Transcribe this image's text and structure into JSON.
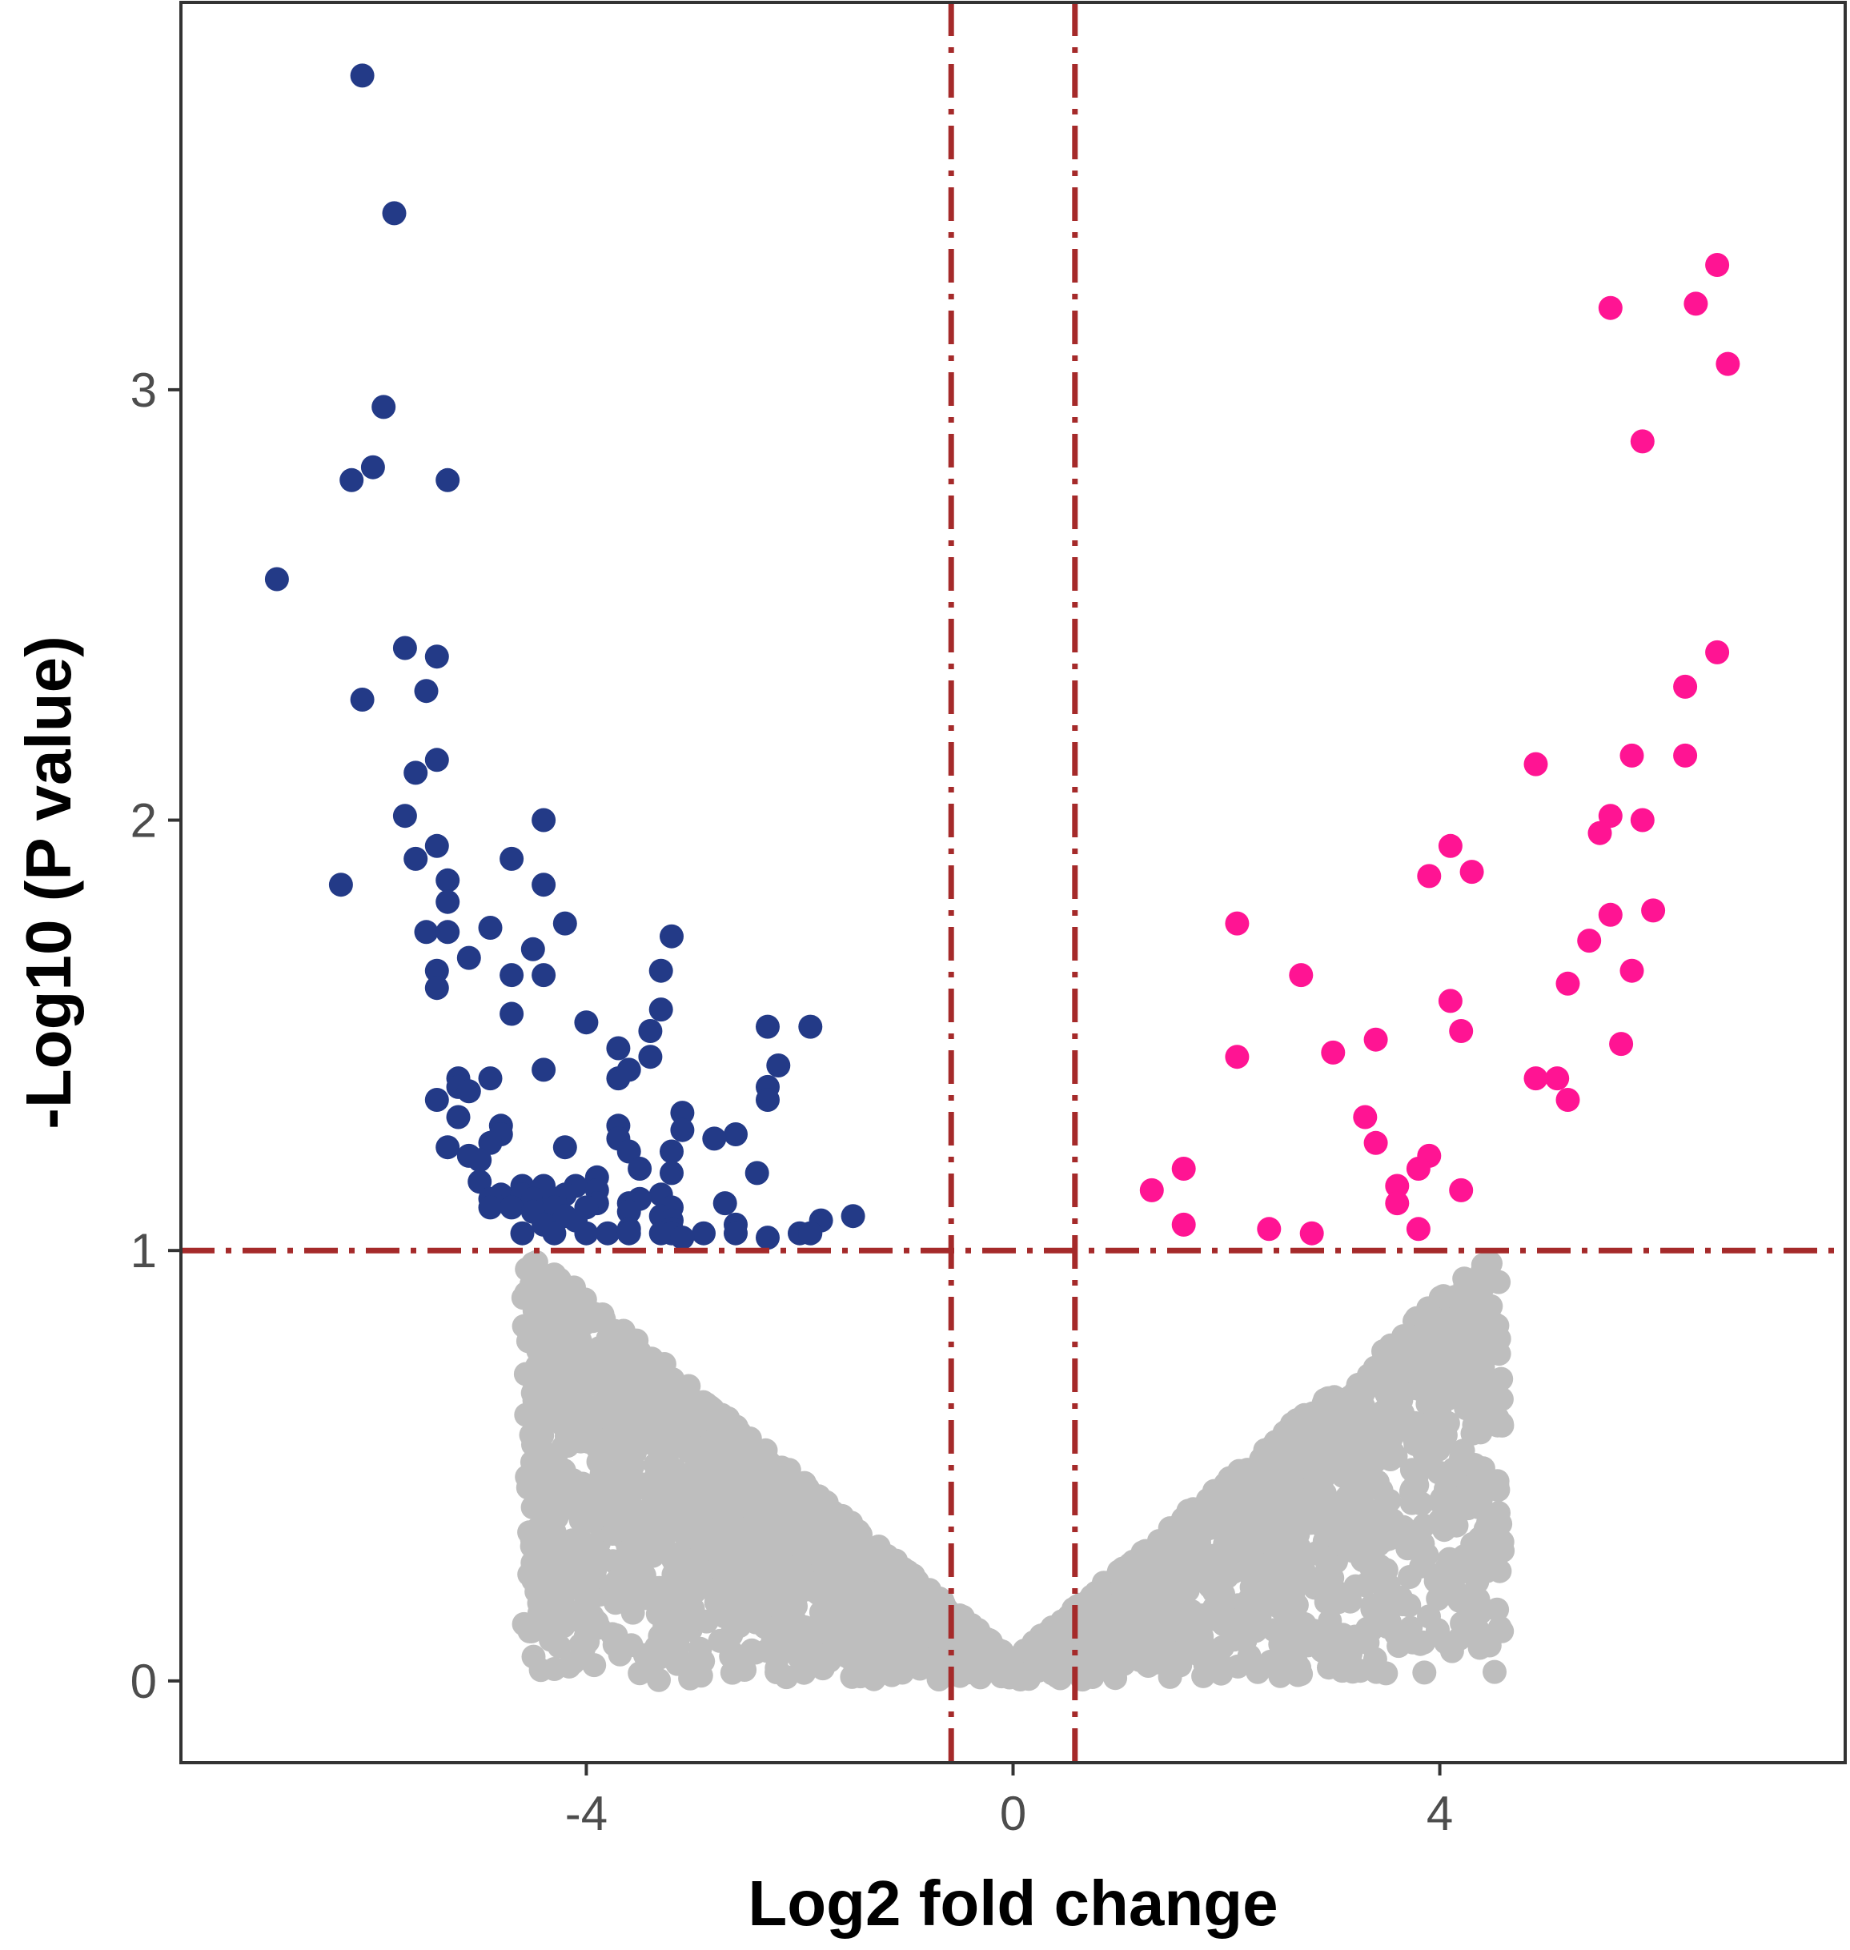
{
  "chart_data": {
    "type": "scatter",
    "title": "",
    "xlabel": "Log2 fold change",
    "ylabel": "-Log10 (P value)",
    "xlim": [
      -7.8,
      7.8
    ],
    "ylim": [
      -0.19,
      3.9
    ],
    "x_ticks": [
      -4,
      0,
      4
    ],
    "x_tick_labels": [
      "-4",
      "0",
      "4"
    ],
    "y_ticks": [
      0,
      1,
      2,
      3
    ],
    "y_tick_labels": [
      "0",
      "1",
      "2",
      "3"
    ],
    "grid": false,
    "legend": "none",
    "thresholds": {
      "log2fc": [
        -0.58,
        0.58
      ],
      "neg_log10_p": 1,
      "color": "#a52a2a"
    },
    "colors": {
      "down": "#233a87",
      "up": "#ff1493",
      "not_significant": "#bebebe"
    },
    "series": [
      {
        "group": "down",
        "points": [
          [
            -6.1,
            3.73
          ],
          [
            -5.8,
            3.41
          ],
          [
            -5.9,
            2.96
          ],
          [
            -6.0,
            2.82
          ],
          [
            -6.2,
            2.79
          ],
          [
            -5.3,
            2.79
          ],
          [
            -6.9,
            2.56
          ],
          [
            -5.7,
            2.4
          ],
          [
            -5.4,
            2.38
          ],
          [
            -5.5,
            2.3
          ],
          [
            -6.1,
            2.28
          ],
          [
            -5.4,
            2.14
          ],
          [
            -5.6,
            2.11
          ],
          [
            -5.7,
            2.01
          ],
          [
            -4.4,
            2.0
          ],
          [
            -5.4,
            1.94
          ],
          [
            -5.6,
            1.91
          ],
          [
            -4.7,
            1.91
          ],
          [
            -5.3,
            1.86
          ],
          [
            -6.3,
            1.85
          ],
          [
            -4.4,
            1.85
          ],
          [
            -5.3,
            1.81
          ],
          [
            -4.2,
            1.76
          ],
          [
            -5.5,
            1.74
          ],
          [
            -5.3,
            1.74
          ],
          [
            -4.9,
            1.75
          ],
          [
            -3.2,
            1.73
          ],
          [
            -4.5,
            1.7
          ],
          [
            -5.1,
            1.68
          ],
          [
            -5.4,
            1.65
          ],
          [
            -4.7,
            1.64
          ],
          [
            -4.4,
            1.64
          ],
          [
            -3.3,
            1.65
          ],
          [
            -5.4,
            1.61
          ],
          [
            -3.3,
            1.56
          ],
          [
            -4.7,
            1.55
          ],
          [
            -4.0,
            1.53
          ],
          [
            -3.4,
            1.51
          ],
          [
            -2.3,
            1.52
          ],
          [
            -1.9,
            1.52
          ],
          [
            -3.7,
            1.47
          ],
          [
            -3.4,
            1.45
          ],
          [
            -2.2,
            1.43
          ],
          [
            -4.4,
            1.42
          ],
          [
            -5.2,
            1.4
          ],
          [
            -4.9,
            1.4
          ],
          [
            -3.7,
            1.4
          ],
          [
            -3.6,
            1.42
          ],
          [
            -5.2,
            1.38
          ],
          [
            -5.1,
            1.37
          ],
          [
            -2.3,
            1.38
          ],
          [
            -5.4,
            1.35
          ],
          [
            -2.3,
            1.35
          ],
          [
            -3.1,
            1.32
          ],
          [
            -4.8,
            1.29
          ],
          [
            -5.2,
            1.31
          ],
          [
            -3.7,
            1.29
          ],
          [
            -3.1,
            1.28
          ],
          [
            -4.8,
            1.27
          ],
          [
            -2.6,
            1.27
          ],
          [
            -2.8,
            1.26
          ],
          [
            -3.7,
            1.26
          ],
          [
            -4.9,
            1.25
          ],
          [
            -4.2,
            1.24
          ],
          [
            -5.3,
            1.24
          ],
          [
            -3.6,
            1.23
          ],
          [
            -5.1,
            1.22
          ],
          [
            -3.2,
            1.23
          ],
          [
            -5.0,
            1.21
          ],
          [
            -3.5,
            1.19
          ],
          [
            -2.4,
            1.18
          ],
          [
            -3.2,
            1.18
          ],
          [
            -3.9,
            1.17
          ],
          [
            -5.0,
            1.16
          ],
          [
            -4.6,
            1.15
          ],
          [
            -4.4,
            1.15
          ],
          [
            -4.1,
            1.15
          ],
          [
            -3.9,
            1.14
          ],
          [
            -4.8,
            1.13
          ],
          [
            -4.6,
            1.13
          ],
          [
            -4.2,
            1.13
          ],
          [
            -3.3,
            1.13
          ],
          [
            -4.9,
            1.12
          ],
          [
            -4.5,
            1.12
          ],
          [
            -4.3,
            1.12
          ],
          [
            -3.5,
            1.12
          ],
          [
            -3.9,
            1.11
          ],
          [
            -3.6,
            1.11
          ],
          [
            -2.7,
            1.11
          ],
          [
            -4.9,
            1.1
          ],
          [
            -4.7,
            1.1
          ],
          [
            -4.3,
            1.1
          ],
          [
            -4.0,
            1.1
          ],
          [
            -3.2,
            1.1
          ],
          [
            -3.6,
            1.09
          ],
          [
            -4.5,
            1.09
          ],
          [
            -4.2,
            1.08
          ],
          [
            -3.3,
            1.08
          ],
          [
            -1.5,
            1.08
          ],
          [
            -4.1,
            1.07
          ],
          [
            -3.2,
            1.07
          ],
          [
            -1.8,
            1.07
          ],
          [
            -2.6,
            1.06
          ],
          [
            -4.4,
            1.06
          ],
          [
            -3.6,
            1.05
          ],
          [
            -3.2,
            1.05
          ],
          [
            -3.3,
            1.04
          ],
          [
            -2.6,
            1.04
          ],
          [
            -4.0,
            1.04
          ],
          [
            -3.8,
            1.04
          ],
          [
            -3.6,
            1.04
          ],
          [
            -3.2,
            1.04
          ],
          [
            -2.9,
            1.04
          ],
          [
            -2.0,
            1.04
          ],
          [
            -4.6,
            1.04
          ],
          [
            -4.3,
            1.04
          ],
          [
            -3.1,
            1.03
          ],
          [
            -2.3,
            1.03
          ],
          [
            -1.9,
            1.04
          ]
        ]
      },
      {
        "group": "up",
        "points": [
          [
            6.6,
            3.29
          ],
          [
            6.4,
            3.2
          ],
          [
            5.6,
            3.19
          ],
          [
            6.7,
            3.06
          ],
          [
            5.9,
            2.88
          ],
          [
            6.6,
            2.39
          ],
          [
            6.3,
            2.31
          ],
          [
            5.8,
            2.15
          ],
          [
            6.3,
            2.15
          ],
          [
            4.9,
            2.13
          ],
          [
            5.6,
            2.01
          ],
          [
            5.9,
            2.0
          ],
          [
            5.5,
            1.97
          ],
          [
            4.1,
            1.94
          ],
          [
            4.3,
            1.88
          ],
          [
            3.9,
            1.87
          ],
          [
            6.0,
            1.79
          ],
          [
            5.6,
            1.78
          ],
          [
            2.1,
            1.76
          ],
          [
            5.4,
            1.72
          ],
          [
            2.7,
            1.64
          ],
          [
            5.8,
            1.65
          ],
          [
            5.2,
            1.62
          ],
          [
            4.1,
            1.58
          ],
          [
            4.2,
            1.51
          ],
          [
            3.4,
            1.49
          ],
          [
            5.7,
            1.48
          ],
          [
            3.0,
            1.46
          ],
          [
            2.1,
            1.45
          ],
          [
            4.9,
            1.4
          ],
          [
            5.1,
            1.4
          ],
          [
            5.2,
            1.35
          ],
          [
            3.3,
            1.31
          ],
          [
            3.4,
            1.25
          ],
          [
            3.9,
            1.22
          ],
          [
            3.8,
            1.19
          ],
          [
            1.6,
            1.19
          ],
          [
            3.6,
            1.15
          ],
          [
            1.3,
            1.14
          ],
          [
            4.2,
            1.14
          ],
          [
            3.6,
            1.11
          ],
          [
            1.6,
            1.06
          ],
          [
            2.4,
            1.05
          ],
          [
            3.8,
            1.05
          ],
          [
            2.8,
            1.04
          ]
        ]
      }
    ],
    "background_cloud": {
      "group": "not_significant",
      "description_shape": "V-shaped cloud below the p threshold",
      "x_range": [
        -4.6,
        4.6
      ],
      "y_range": [
        0,
        0.98
      ]
    }
  }
}
